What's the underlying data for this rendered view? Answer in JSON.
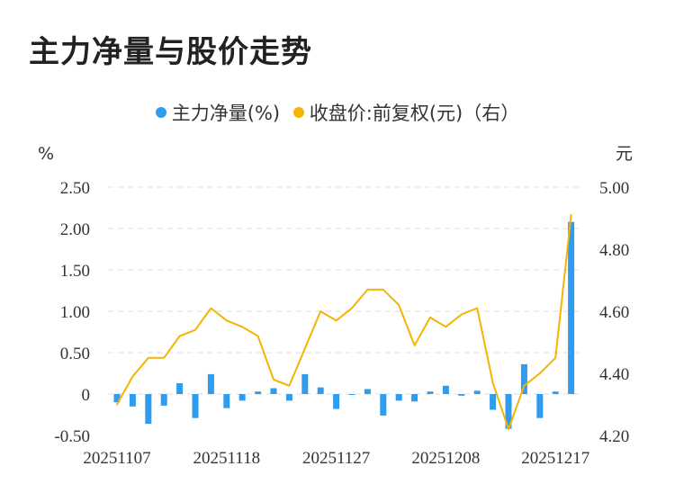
{
  "title": "主力净量与股价走势",
  "colors": {
    "bar": "#2f9cef",
    "line": "#f4b400",
    "grid": "#e3e3e3"
  },
  "legend": [
    {
      "label": "主力净量(%)",
      "color": "#2f9cef"
    },
    {
      "label": "收盘价:前复权(元)（右）",
      "color": "#f4b400"
    }
  ],
  "chart_data": {
    "type": "bar+line",
    "title": "主力净量与股价走势",
    "y_left": {
      "unit": "%",
      "ticks": [
        "2.50",
        "2.00",
        "1.50",
        "1.00",
        "0.50",
        "0",
        "-0.50"
      ],
      "ylim": [
        -0.5,
        2.5
      ]
    },
    "y_right": {
      "unit": "元",
      "ticks": [
        "5.00",
        "4.80",
        "4.60",
        "4.40",
        "4.20"
      ],
      "ylim": [
        4.2,
        5.0
      ]
    },
    "x_tick_labels": [
      "20251107",
      "20251118",
      "20251127",
      "20251208",
      "20251217"
    ],
    "x_tick_indices": [
      0,
      7,
      14,
      21,
      28
    ],
    "series": [
      {
        "name": "主力净量(%)",
        "type": "bar",
        "axis": "left",
        "values": [
          -0.1,
          -0.15,
          -0.36,
          -0.14,
          0.13,
          -0.29,
          0.24,
          -0.17,
          -0.08,
          0.03,
          0.07,
          -0.08,
          0.24,
          0.08,
          -0.18,
          0.0,
          0.06,
          -0.26,
          -0.08,
          -0.09,
          0.03,
          0.1,
          -0.02,
          0.04,
          -0.19,
          -0.42,
          0.36,
          -0.29,
          0.03,
          2.08
        ]
      },
      {
        "name": "收盘价:前复权(元)（右）",
        "type": "line",
        "axis": "right",
        "values": [
          4.3,
          4.39,
          4.45,
          4.45,
          4.52,
          4.54,
          4.61,
          4.57,
          4.55,
          4.52,
          4.38,
          4.36,
          4.48,
          4.6,
          4.57,
          4.61,
          4.67,
          4.67,
          4.62,
          4.49,
          4.58,
          4.55,
          4.59,
          4.61,
          4.37,
          4.22,
          4.36,
          4.4,
          4.45,
          4.91
        ]
      }
    ]
  }
}
